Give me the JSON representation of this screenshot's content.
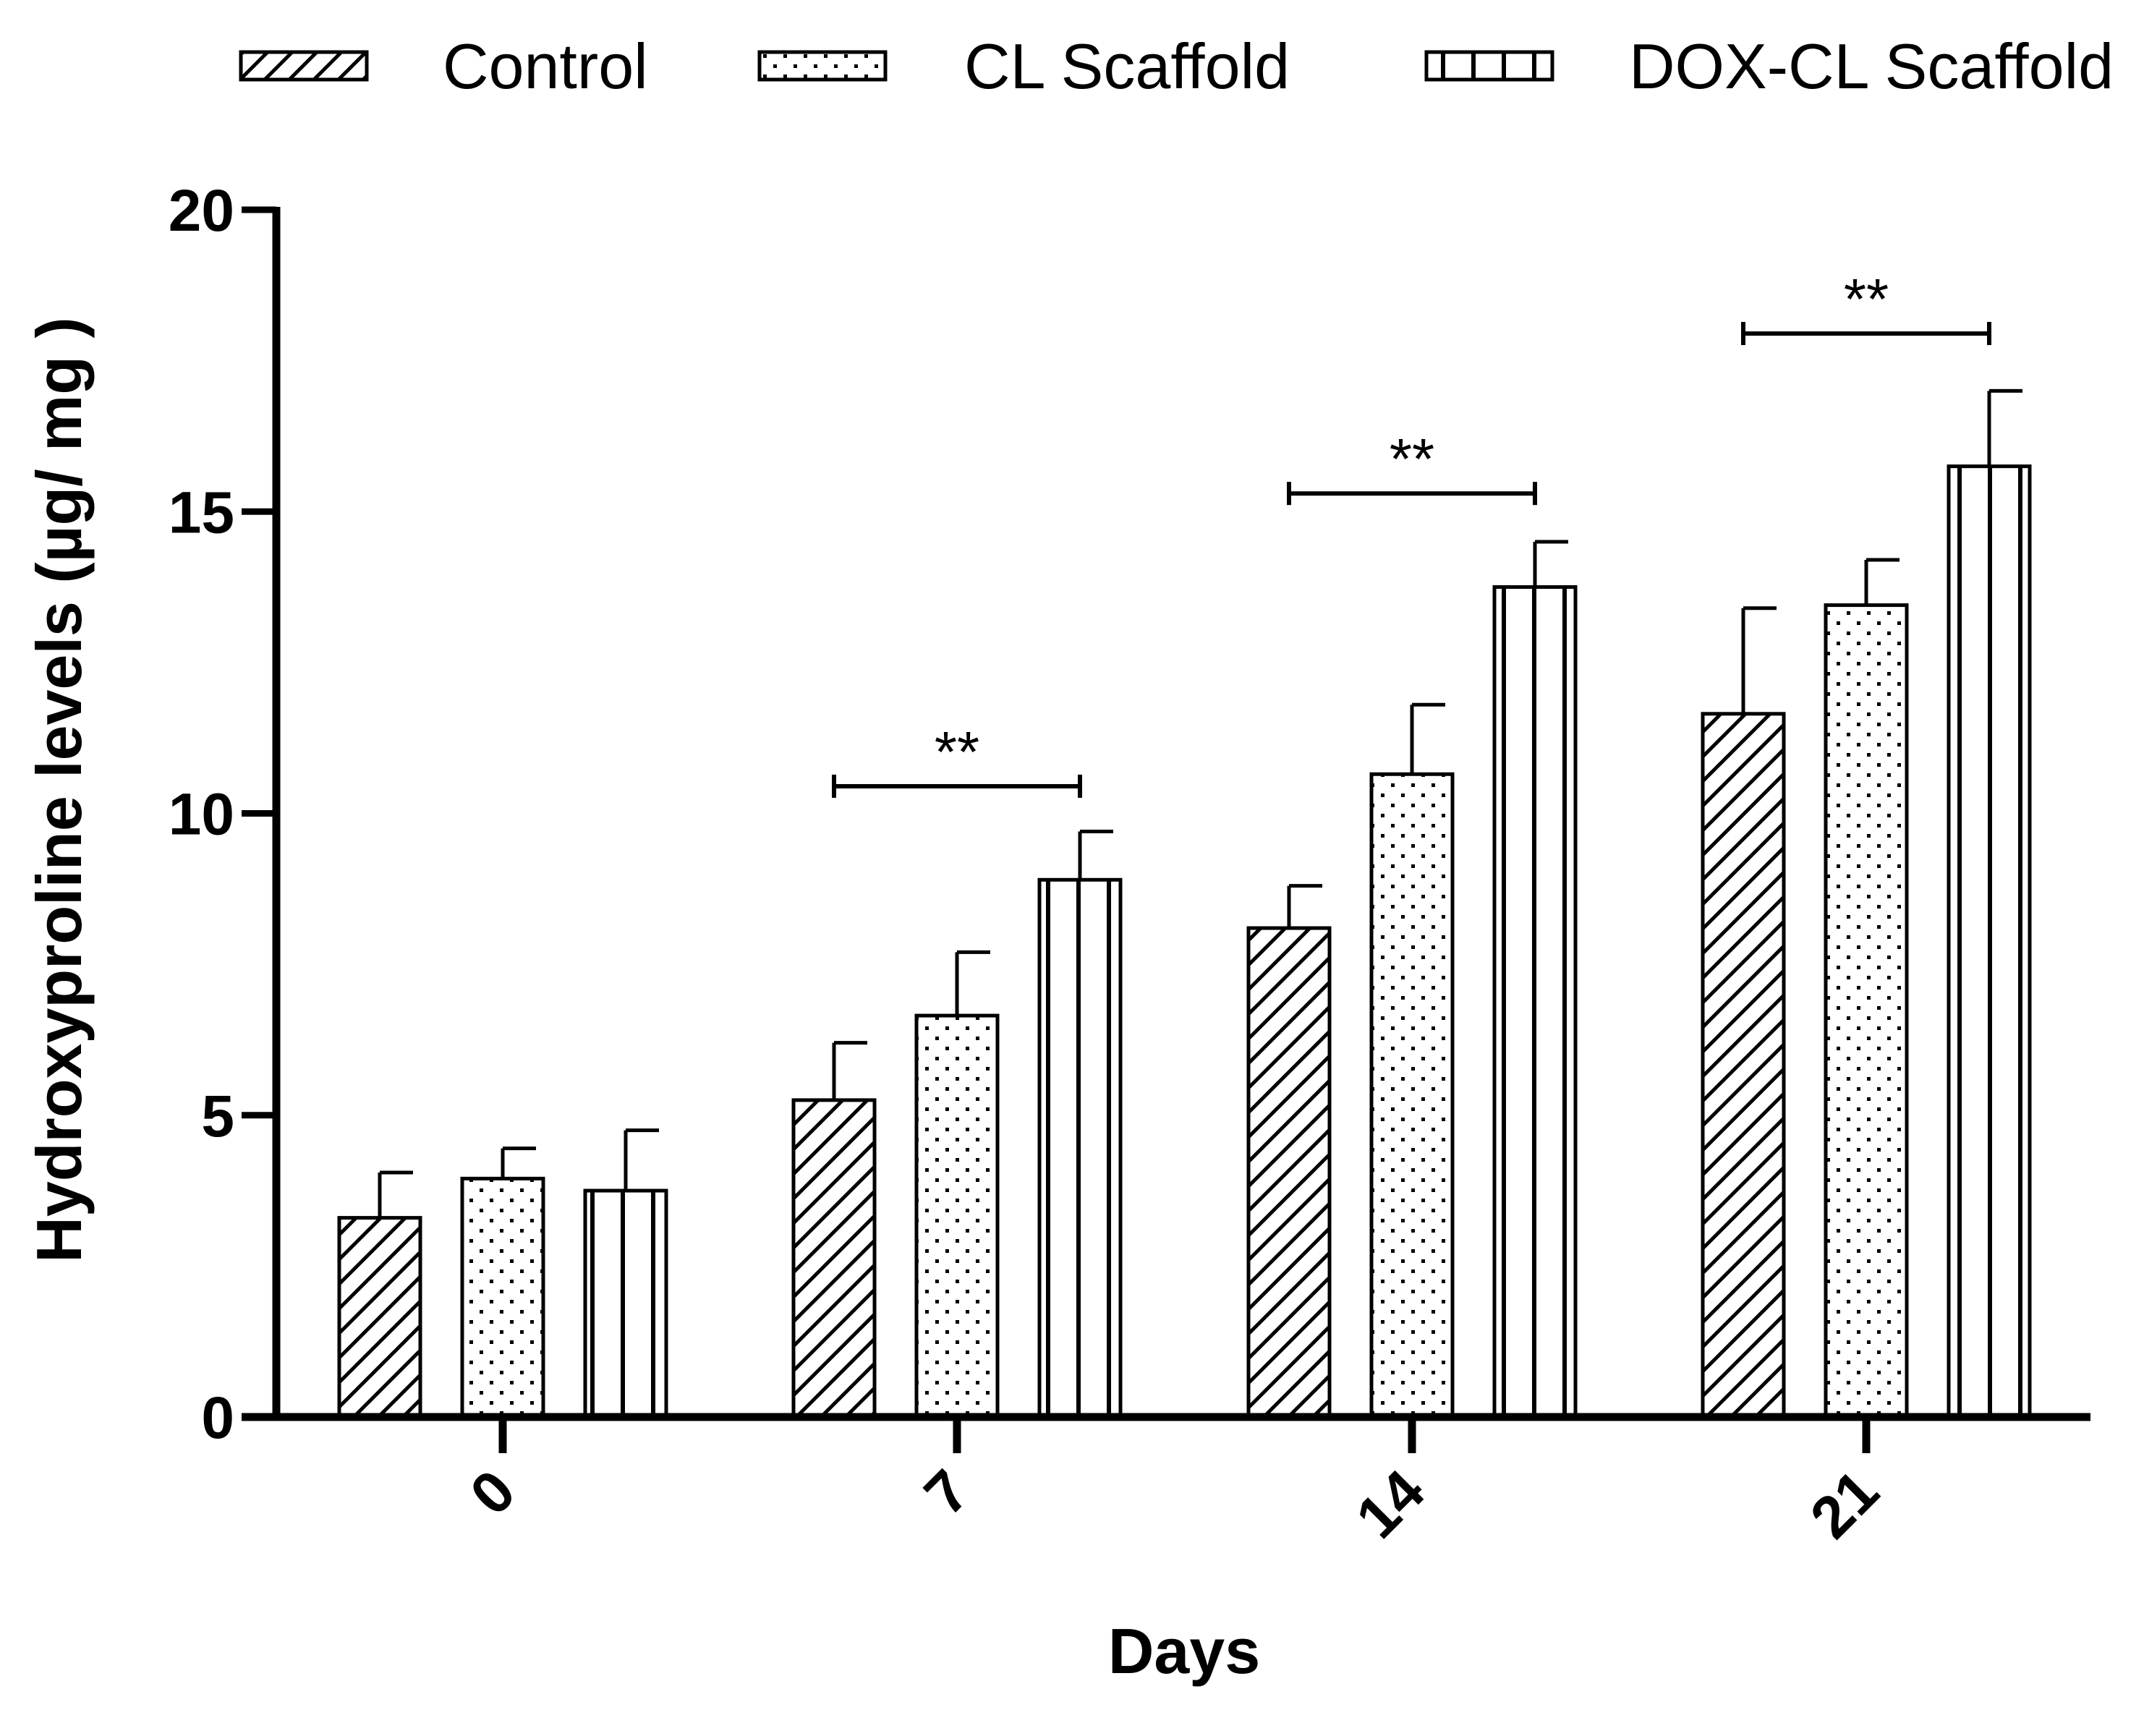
{
  "chart_data": {
    "type": "bar",
    "title": "",
    "xlabel": "Days",
    "ylabel": "Hydroxyproline levels (µg/ mg )",
    "ylim": [
      0,
      20
    ],
    "yticks": [
      0,
      5,
      10,
      15,
      20
    ],
    "categories": [
      "0",
      "7",
      "14",
      "21"
    ],
    "series": [
      {
        "name": "Control",
        "pattern": "diagonal-hatch",
        "values": [
          3.3,
          5.25,
          8.1,
          11.65
        ],
        "errors": [
          0.75,
          0.95,
          0.7,
          1.75
        ]
      },
      {
        "name": "CL Scaffold",
        "pattern": "dots",
        "values": [
          3.95,
          6.65,
          10.65,
          13.45
        ],
        "errors": [
          0.5,
          1.05,
          1.15,
          0.75
        ]
      },
      {
        "name": "DOX-CL Scaffold",
        "pattern": "vertical-lines",
        "values": [
          3.75,
          8.9,
          13.75,
          15.75
        ],
        "errors": [
          1.0,
          0.8,
          0.75,
          1.25
        ]
      }
    ],
    "significance": [
      {
        "category": "7",
        "label": "**",
        "y": 10.45
      },
      {
        "category": "14",
        "label": "**",
        "y": 15.3
      },
      {
        "category": "21",
        "label": "**",
        "y": 17.95
      }
    ],
    "legend_position": "top"
  },
  "colors": {
    "ink": "#000000",
    "bar_fill": "#ffffff"
  }
}
